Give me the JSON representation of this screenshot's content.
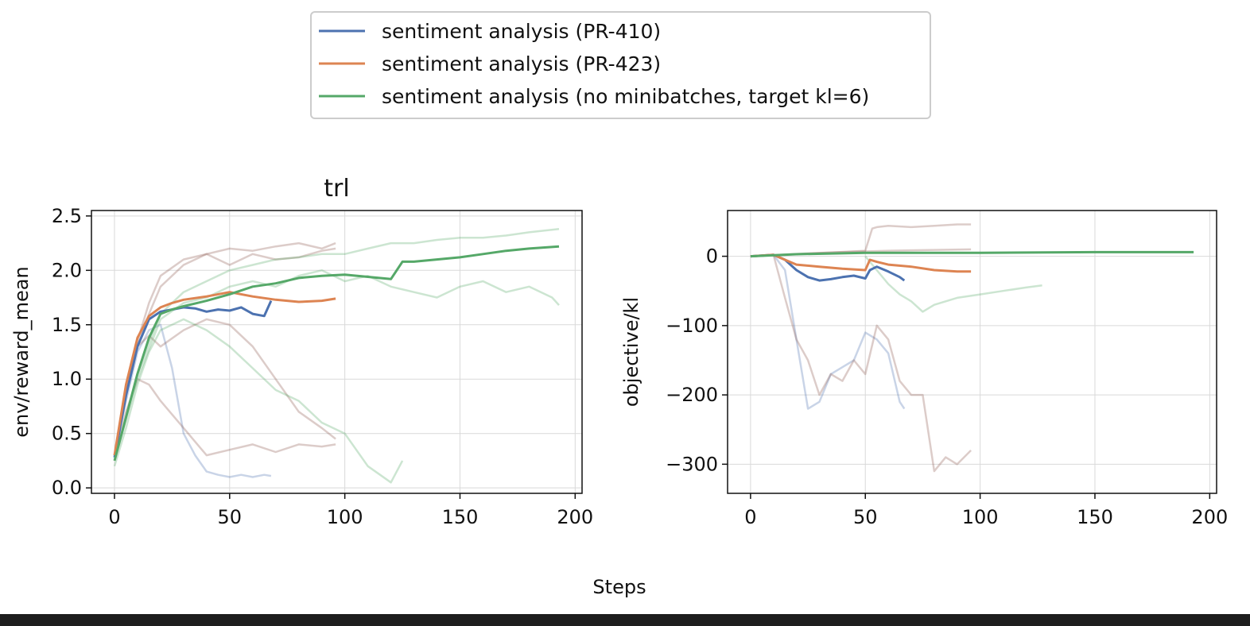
{
  "figure": {
    "supxlabel": "Steps",
    "bottom_bar_color": "#1e1e1e"
  },
  "legend": {
    "placement": "top-center",
    "entries": [
      {
        "label": "sentiment analysis (PR-410)",
        "color": "#4c72b0"
      },
      {
        "label": "sentiment analysis (PR-423)",
        "color": "#dd8452"
      },
      {
        "label": "sentiment analysis (no minibatches, target kl=6)",
        "color": "#55a868"
      }
    ]
  },
  "chart_data": [
    {
      "type": "line",
      "title": "trl",
      "xlabel": "",
      "ylabel": "env/reward_mean",
      "xlim": [
        -10,
        203
      ],
      "ylim": [
        -0.05,
        2.55
      ],
      "xticks": [
        0,
        50,
        100,
        150,
        200
      ],
      "xtick_labels": [
        "0",
        "50",
        "100",
        "150",
        "200"
      ],
      "yticks": [
        0.0,
        0.5,
        1.0,
        1.5,
        2.0,
        2.5
      ],
      "ytick_labels": [
        "0.0",
        "0.5",
        "1.0",
        "1.5",
        "2.0",
        "2.5"
      ],
      "grid": true,
      "series": [
        {
          "name": "sentiment analysis (PR-410)",
          "color": "#4c72b0",
          "x": [
            0,
            5,
            10,
            15,
            20,
            25,
            30,
            35,
            40,
            45,
            50,
            55,
            60,
            65,
            68
          ],
          "y": [
            0.28,
            0.85,
            1.3,
            1.55,
            1.62,
            1.64,
            1.66,
            1.65,
            1.62,
            1.64,
            1.63,
            1.66,
            1.6,
            1.58,
            1.72
          ]
        },
        {
          "name": "sentiment analysis (PR-423)",
          "color": "#dd8452",
          "x": [
            0,
            5,
            10,
            15,
            20,
            25,
            30,
            40,
            50,
            60,
            70,
            80,
            90,
            96
          ],
          "y": [
            0.3,
            0.95,
            1.38,
            1.58,
            1.66,
            1.7,
            1.73,
            1.76,
            1.8,
            1.76,
            1.73,
            1.71,
            1.72,
            1.74
          ]
        },
        {
          "name": "sentiment analysis (no minibatches, target kl=6)",
          "color": "#55a868",
          "x": [
            0,
            5,
            10,
            15,
            20,
            25,
            30,
            40,
            50,
            60,
            70,
            80,
            90,
            100,
            110,
            120,
            125,
            130,
            140,
            150,
            160,
            170,
            180,
            193
          ],
          "y": [
            0.25,
            0.65,
            1.05,
            1.38,
            1.6,
            1.64,
            1.67,
            1.72,
            1.78,
            1.85,
            1.88,
            1.93,
            1.95,
            1.96,
            1.94,
            1.92,
            2.08,
            2.08,
            2.1,
            2.12,
            2.15,
            2.18,
            2.2,
            2.22
          ]
        }
      ],
      "faint_runs": [
        {
          "color": "#4c72b0",
          "x": [
            0,
            5,
            10,
            15,
            20,
            25,
            30,
            35,
            40,
            45,
            50,
            55,
            60,
            65,
            68
          ],
          "y": [
            0.3,
            0.8,
            1.25,
            1.45,
            1.5,
            1.1,
            0.5,
            0.3,
            0.15,
            0.12,
            0.1,
            0.12,
            0.1,
            0.12,
            0.11
          ]
        },
        {
          "color": "#8c564b",
          "x": [
            0,
            5,
            10,
            15,
            20,
            30,
            40,
            50,
            60,
            70,
            80,
            90,
            96
          ],
          "y": [
            0.3,
            0.9,
            1.3,
            1.6,
            1.85,
            2.05,
            2.15,
            2.2,
            2.18,
            2.22,
            2.25,
            2.2,
            2.25
          ]
        },
        {
          "color": "#8c564b",
          "x": [
            0,
            5,
            10,
            15,
            20,
            30,
            40,
            50,
            60,
            70,
            80,
            90,
            96
          ],
          "y": [
            0.3,
            0.95,
            1.35,
            1.7,
            1.95,
            2.1,
            2.15,
            2.05,
            2.15,
            2.1,
            2.12,
            2.18,
            2.2
          ]
        },
        {
          "color": "#8c564b",
          "x": [
            0,
            5,
            10,
            15,
            20,
            30,
            40,
            50,
            60,
            70,
            80,
            90,
            96
          ],
          "y": [
            0.25,
            0.7,
            1.0,
            0.95,
            0.8,
            0.55,
            0.3,
            0.35,
            0.4,
            0.33,
            0.4,
            0.38,
            0.4
          ]
        },
        {
          "color": "#8c564b",
          "x": [
            0,
            5,
            10,
            15,
            20,
            30,
            40,
            50,
            60,
            70,
            80,
            90,
            96
          ],
          "y": [
            0.3,
            0.9,
            1.3,
            1.4,
            1.3,
            1.45,
            1.55,
            1.5,
            1.3,
            1.0,
            0.7,
            0.55,
            0.45
          ]
        },
        {
          "color": "#55a868",
          "x": [
            0,
            5,
            10,
            15,
            20,
            30,
            40,
            50,
            60,
            70,
            80,
            90,
            100,
            110,
            120,
            125
          ],
          "y": [
            0.2,
            0.55,
            0.95,
            1.25,
            1.45,
            1.55,
            1.45,
            1.3,
            1.1,
            0.9,
            0.8,
            0.6,
            0.5,
            0.2,
            0.05,
            0.25
          ]
        },
        {
          "color": "#55a868",
          "x": [
            0,
            10,
            20,
            30,
            40,
            50,
            60,
            70,
            80,
            90,
            100,
            110,
            120,
            130,
            140,
            150,
            160,
            170,
            180,
            193
          ],
          "y": [
            0.25,
            1.05,
            1.6,
            1.8,
            1.9,
            2.0,
            2.05,
            2.1,
            2.12,
            2.15,
            2.15,
            2.2,
            2.25,
            2.25,
            2.28,
            2.3,
            2.3,
            2.32,
            2.35,
            2.38
          ]
        },
        {
          "color": "#55a868",
          "x": [
            0,
            10,
            20,
            30,
            40,
            50,
            60,
            70,
            80,
            90,
            100,
            110,
            120,
            130,
            140,
            150,
            160,
            170,
            180,
            190,
            193
          ],
          "y": [
            0.25,
            1.0,
            1.55,
            1.7,
            1.75,
            1.85,
            1.9,
            1.85,
            1.95,
            2.0,
            1.9,
            1.95,
            1.85,
            1.8,
            1.75,
            1.85,
            1.9,
            1.8,
            1.85,
            1.75,
            1.68
          ]
        }
      ]
    },
    {
      "type": "line",
      "title": "",
      "xlabel": "",
      "ylabel": "objective/kl",
      "xlim": [
        -10,
        203
      ],
      "ylim": [
        -342,
        66
      ],
      "xticks": [
        0,
        50,
        100,
        150,
        200
      ],
      "xtick_labels": [
        "0",
        "50",
        "100",
        "150",
        "200"
      ],
      "yticks": [
        0,
        -100,
        -200,
        -300
      ],
      "ytick_labels": [
        "0",
        "−100",
        "−200",
        "−300"
      ],
      "grid": true,
      "series": [
        {
          "name": "sentiment analysis (PR-410)",
          "color": "#4c72b0",
          "x": [
            0,
            10,
            15,
            20,
            25,
            30,
            35,
            40,
            45,
            50,
            52,
            55,
            60,
            65,
            67
          ],
          "y": [
            0,
            2,
            -5,
            -20,
            -30,
            -35,
            -33,
            -30,
            -28,
            -32,
            -20,
            -15,
            -22,
            -30,
            -35
          ]
        },
        {
          "name": "sentiment analysis (PR-423)",
          "color": "#dd8452",
          "x": [
            0,
            10,
            15,
            20,
            30,
            40,
            50,
            52,
            55,
            60,
            70,
            80,
            90,
            96
          ],
          "y": [
            0,
            2,
            -5,
            -12,
            -15,
            -18,
            -20,
            -5,
            -8,
            -12,
            -15,
            -20,
            -22,
            -22
          ]
        },
        {
          "name": "sentiment analysis (no minibatches, target kl=6)",
          "color": "#55a868",
          "x": [
            0,
            20,
            50,
            100,
            150,
            193
          ],
          "y": [
            0,
            3,
            5,
            5,
            6,
            6
          ]
        }
      ],
      "faint_runs": [
        {
          "color": "#4c72b0",
          "x": [
            0,
            10,
            15,
            20,
            25,
            30,
            35,
            40,
            45,
            50,
            55,
            60,
            65,
            67
          ],
          "y": [
            0,
            2,
            -20,
            -120,
            -220,
            -210,
            -170,
            -160,
            -150,
            -110,
            -120,
            -140,
            -210,
            -220
          ]
        },
        {
          "color": "#8c564b",
          "x": [
            0,
            10,
            15,
            20,
            25,
            30,
            35,
            40,
            45,
            50,
            55,
            60,
            65,
            70,
            75,
            80,
            85,
            90,
            96
          ],
          "y": [
            0,
            2,
            -60,
            -120,
            -150,
            -200,
            -170,
            -180,
            -150,
            -170,
            -100,
            -120,
            -180,
            -200,
            -200,
            -310,
            -290,
            -300,
            -280
          ]
        },
        {
          "color": "#8c564b",
          "x": [
            0,
            20,
            50,
            53,
            55,
            60,
            70,
            80,
            90,
            96
          ],
          "y": [
            0,
            3,
            8,
            40,
            42,
            44,
            42,
            44,
            46,
            46
          ]
        },
        {
          "color": "#55a868",
          "x": [
            50,
            60,
            65,
            70,
            75,
            80,
            90,
            100,
            110,
            120,
            127
          ],
          "y": [
            0,
            -40,
            -55,
            -65,
            -80,
            -70,
            -60,
            -55,
            -50,
            -45,
            -42
          ]
        },
        {
          "color": "#8c564b",
          "x": [
            0,
            30,
            60,
            96
          ],
          "y": [
            0,
            5,
            8,
            10
          ]
        }
      ]
    }
  ]
}
